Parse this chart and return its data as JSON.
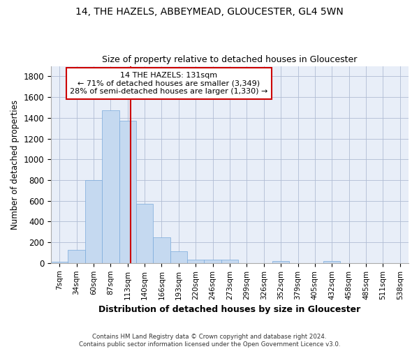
{
  "title1": "14, THE HAZELS, ABBEYMEAD, GLOUCESTER, GL4 5WN",
  "title2": "Size of property relative to detached houses in Gloucester",
  "xlabel": "Distribution of detached houses by size in Gloucester",
  "ylabel": "Number of detached properties",
  "footer1": "Contains HM Land Registry data © Crown copyright and database right 2024.",
  "footer2": "Contains public sector information licensed under the Open Government Licence v3.0.",
  "bar_labels": [
    "7sqm",
    "34sqm",
    "60sqm",
    "87sqm",
    "113sqm",
    "140sqm",
    "166sqm",
    "193sqm",
    "220sqm",
    "246sqm",
    "273sqm",
    "299sqm",
    "326sqm",
    "352sqm",
    "379sqm",
    "405sqm",
    "432sqm",
    "458sqm",
    "485sqm",
    "511sqm",
    "538sqm"
  ],
  "bar_values": [
    10,
    130,
    800,
    1470,
    1370,
    570,
    250,
    110,
    35,
    30,
    30,
    0,
    0,
    20,
    0,
    0,
    20,
    0,
    0,
    0,
    0
  ],
  "bar_color": "#c5d9f0",
  "bar_edge_color": "#7aaadc",
  "annotation_text_line1": "14 THE HAZELS: 131sqm",
  "annotation_text_line2": "← 71% of detached houses are smaller (3,349)",
  "annotation_text_line3": "28% of semi-detached houses are larger (1,330) →",
  "vline_color": "#cc0000",
  "annotation_box_edgecolor": "#cc0000",
  "background_color": "#ffffff",
  "plot_bg_color": "#e8eef8",
  "ylim": [
    0,
    1900
  ],
  "yticks": [
    0,
    200,
    400,
    600,
    800,
    1000,
    1200,
    1400,
    1600,
    1800
  ],
  "vline_x_index": 4.67
}
